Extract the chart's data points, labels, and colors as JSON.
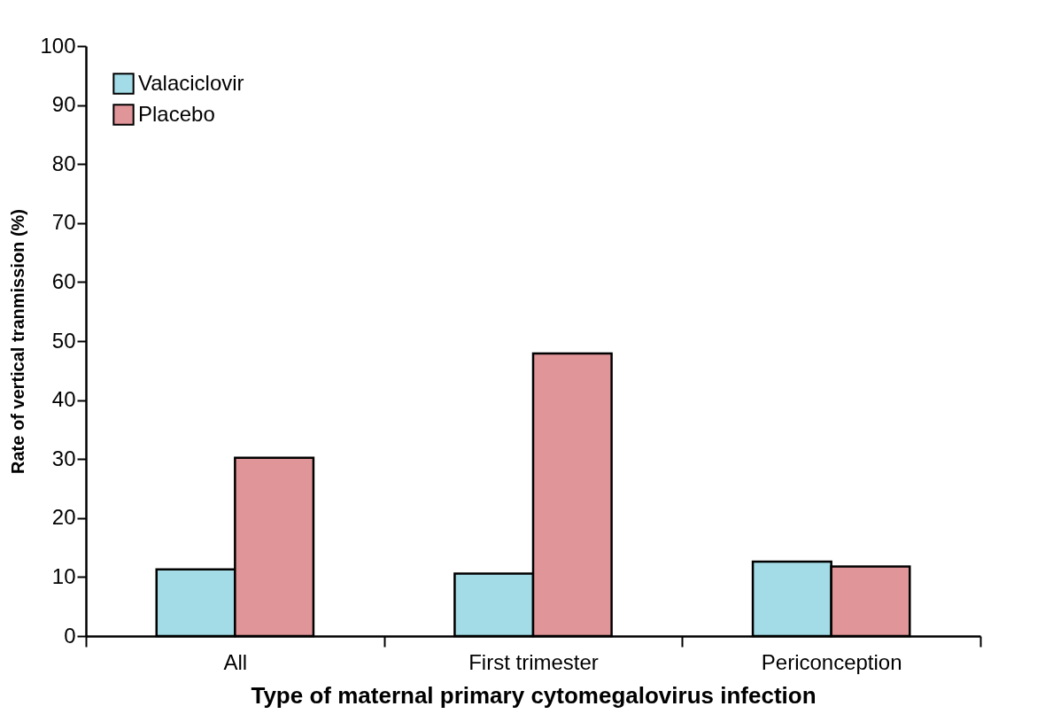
{
  "chart_data": {
    "type": "bar",
    "xlabel": "Type of maternal primary cytomegalovirus infection",
    "ylabel": "Rate of vertical tranmission (%)",
    "categories": [
      "All",
      "First trimester",
      "Periconception"
    ],
    "series": [
      {
        "name": "Valaciclovir",
        "color": "#a3dce6",
        "values": [
          11.3,
          10.6,
          12.6
        ]
      },
      {
        "name": "Placebo",
        "color": "#e09599",
        "values": [
          30.2,
          47.9,
          11.8
        ]
      }
    ],
    "ylim": [
      0,
      100
    ],
    "yticks": [
      0,
      10,
      20,
      30,
      40,
      50,
      60,
      70,
      80,
      90,
      100
    ],
    "grid": false,
    "legend": "top left"
  }
}
